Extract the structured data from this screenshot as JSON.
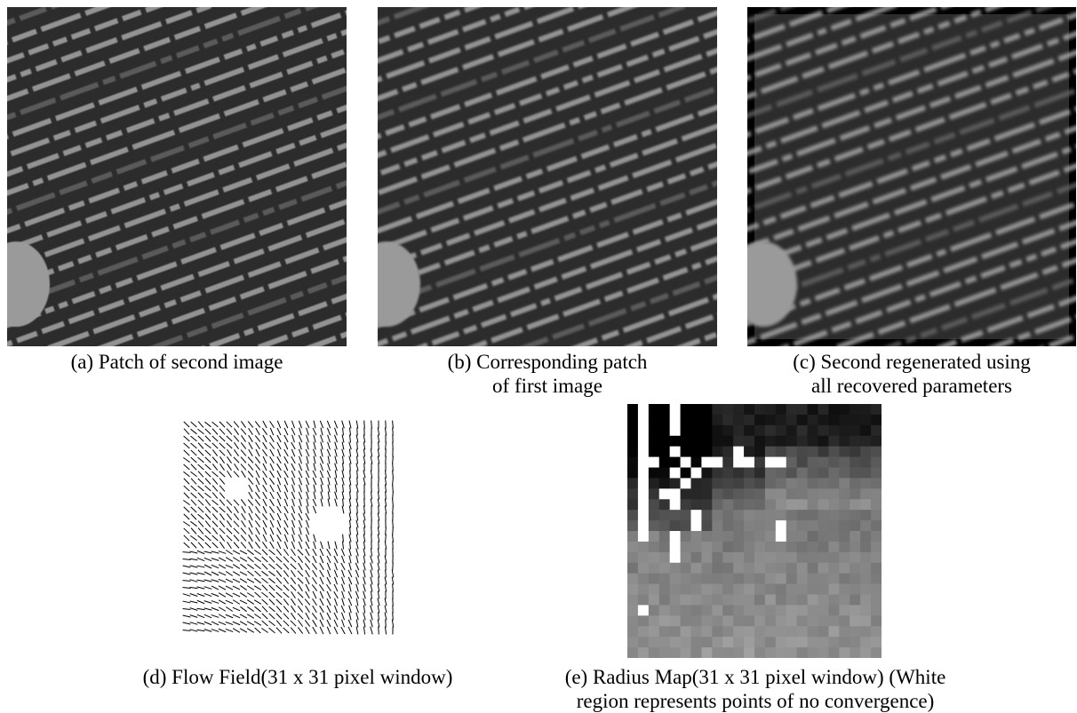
{
  "figure": {
    "panels": [
      {
        "caption": [
          "(a) Patch of second image"
        ]
      },
      {
        "caption": [
          "(b) Corresponding patch",
          "of first image"
        ]
      },
      {
        "caption": [
          "(c) Second regenerated using",
          "all recovered parameters"
        ]
      },
      {
        "caption": [
          "(d) Flow Field(31 x 31 pixel window)"
        ]
      },
      {
        "caption": [
          "(e) Radius Map(31 x 31 pixel window) (White",
          "region represents points of no convergence)"
        ]
      }
    ]
  }
}
